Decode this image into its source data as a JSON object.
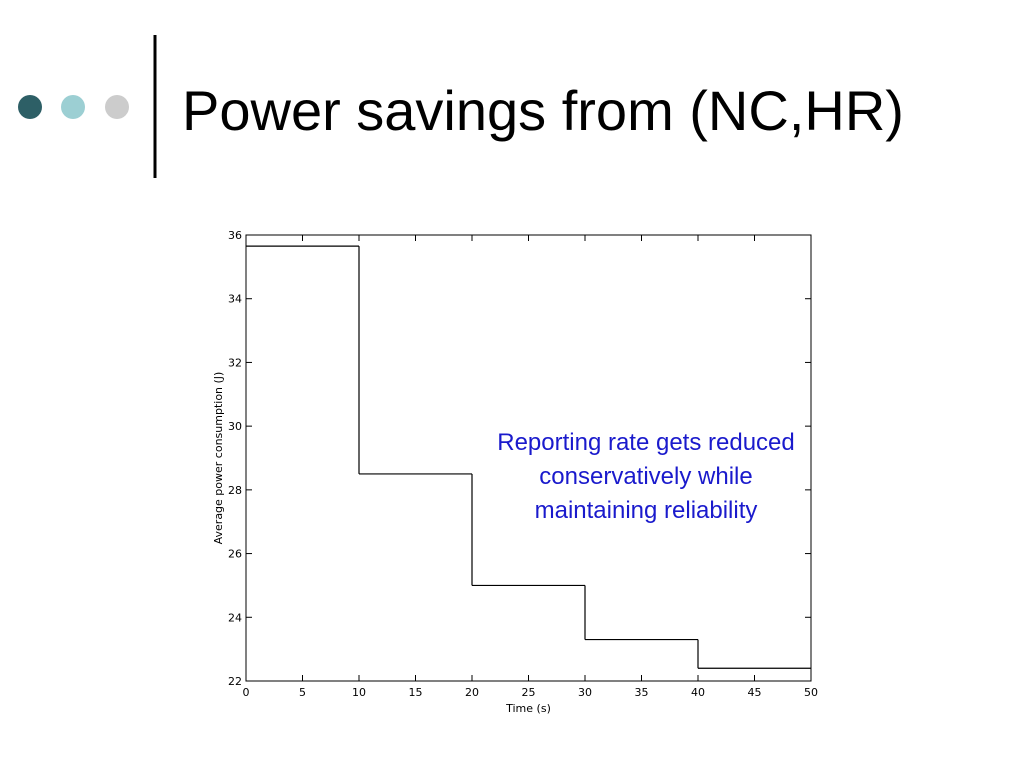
{
  "slide_title": "Power savings from (NC,HR)",
  "chart_data": {
    "type": "step",
    "x": [
      0,
      10,
      20,
      30,
      40
    ],
    "values": [
      35.65,
      28.5,
      25,
      23.3,
      22.4
    ],
    "color": "#000000",
    "xlim": [
      0,
      50
    ],
    "xticks": [
      0,
      5,
      10,
      15,
      20,
      25,
      30,
      35,
      40,
      45,
      50
    ],
    "ylim": [
      22,
      36
    ],
    "yticks": [
      22,
      24,
      26,
      28,
      30,
      32,
      34,
      36
    ],
    "xlabel": "Time (s)",
    "ylabel": "Average power consumption (J)",
    "annotation": [
      "Reporting rate gets reduced",
      "conservatively while",
      "maintaining reliability"
    ],
    "annotation_color": "#1a1acc"
  }
}
